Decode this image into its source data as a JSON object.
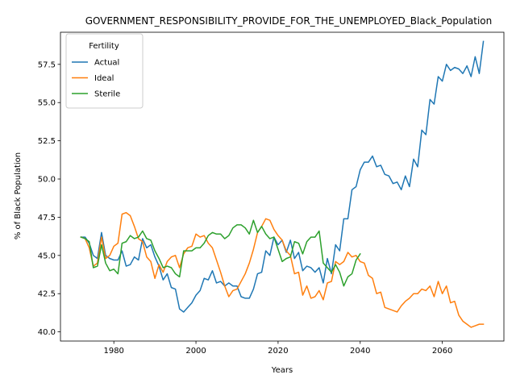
{
  "chart_data": {
    "type": "line",
    "title": "GOVERNMENT_RESPONSIBILITY_PROVIDE_FOR_THE_UNEMPLOYED_Black_Population",
    "xlabel": "Years",
    "ylabel": "% of Black Population",
    "xlim": [
      1967,
      2075
    ],
    "ylim": [
      39.4,
      59.6
    ],
    "xticks": [
      1980,
      2000,
      2020,
      2040,
      2060
    ],
    "yticks": [
      40.0,
      42.5,
      45.0,
      47.5,
      50.0,
      52.5,
      55.0,
      57.5
    ],
    "legend": {
      "title": "Fertility",
      "placement": "top-left"
    },
    "series": [
      {
        "name": "Actual",
        "color": "#1f77b4",
        "points": [
          [
            1972,
            46.2
          ],
          [
            1973,
            46.2
          ],
          [
            1974,
            45.8
          ],
          [
            1975,
            45.0
          ],
          [
            1976,
            44.8
          ],
          [
            1977,
            46.5
          ],
          [
            1978,
            45.0
          ],
          [
            1979,
            44.8
          ],
          [
            1980,
            44.7
          ],
          [
            1981,
            44.7
          ],
          [
            1982,
            45.3
          ],
          [
            1983,
            44.3
          ],
          [
            1984,
            44.4
          ],
          [
            1985,
            44.9
          ],
          [
            1986,
            44.7
          ],
          [
            1987,
            46.1
          ],
          [
            1988,
            45.5
          ],
          [
            1989,
            45.7
          ],
          [
            1990,
            44.9
          ],
          [
            1991,
            44.3
          ],
          [
            1992,
            43.4
          ],
          [
            1993,
            43.8
          ],
          [
            1994,
            42.9
          ],
          [
            1995,
            42.8
          ],
          [
            1996,
            41.5
          ],
          [
            1997,
            41.3
          ],
          [
            1998,
            41.6
          ],
          [
            1999,
            41.9
          ],
          [
            2000,
            42.4
          ],
          [
            2001,
            42.7
          ],
          [
            2002,
            43.5
          ],
          [
            2003,
            43.4
          ],
          [
            2004,
            44.0
          ],
          [
            2005,
            43.2
          ],
          [
            2006,
            43.3
          ],
          [
            2007,
            43.0
          ],
          [
            2008,
            43.2
          ],
          [
            2009,
            43.0
          ],
          [
            2010,
            43.0
          ],
          [
            2011,
            42.3
          ],
          [
            2012,
            42.2
          ],
          [
            2013,
            42.2
          ],
          [
            2014,
            42.8
          ],
          [
            2015,
            43.8
          ],
          [
            2016,
            43.9
          ],
          [
            2017,
            45.3
          ],
          [
            2018,
            45.0
          ],
          [
            2019,
            46.2
          ],
          [
            2020,
            45.7
          ],
          [
            2021,
            46.0
          ],
          [
            2022,
            45.2
          ],
          [
            2023,
            46.0
          ],
          [
            2024,
            44.8
          ],
          [
            2025,
            45.2
          ],
          [
            2026,
            44.0
          ],
          [
            2027,
            44.3
          ],
          [
            2028,
            44.2
          ],
          [
            2029,
            43.9
          ],
          [
            2030,
            44.2
          ],
          [
            2031,
            43.2
          ],
          [
            2032,
            44.8
          ],
          [
            2033,
            43.8
          ],
          [
            2034,
            45.7
          ],
          [
            2035,
            45.3
          ],
          [
            2036,
            47.4
          ],
          [
            2037,
            47.4
          ],
          [
            2038,
            49.3
          ],
          [
            2039,
            49.5
          ],
          [
            2040,
            50.6
          ],
          [
            2041,
            51.1
          ],
          [
            2042,
            51.1
          ],
          [
            2043,
            51.5
          ],
          [
            2044,
            50.8
          ],
          [
            2045,
            50.9
          ],
          [
            2046,
            50.3
          ],
          [
            2047,
            50.2
          ],
          [
            2048,
            49.7
          ],
          [
            2049,
            49.8
          ],
          [
            2050,
            49.3
          ],
          [
            2051,
            50.2
          ],
          [
            2052,
            49.5
          ],
          [
            2053,
            51.3
          ],
          [
            2054,
            50.8
          ],
          [
            2055,
            53.2
          ],
          [
            2056,
            52.9
          ],
          [
            2057,
            55.2
          ],
          [
            2058,
            54.9
          ],
          [
            2059,
            56.7
          ],
          [
            2060,
            56.4
          ],
          [
            2061,
            57.5
          ],
          [
            2062,
            57.1
          ],
          [
            2063,
            57.3
          ],
          [
            2064,
            57.2
          ],
          [
            2065,
            56.9
          ],
          [
            2066,
            57.4
          ],
          [
            2067,
            56.7
          ],
          [
            2068,
            58.0
          ],
          [
            2069,
            56.9
          ],
          [
            2070,
            59.0
          ]
        ]
      },
      {
        "name": "Ideal",
        "color": "#ff7f0e",
        "points": [
          [
            1972,
            46.2
          ],
          [
            1973,
            46.1
          ],
          [
            1974,
            45.5
          ],
          [
            1975,
            44.3
          ],
          [
            1976,
            44.5
          ],
          [
            1977,
            46.2
          ],
          [
            1978,
            44.8
          ],
          [
            1979,
            45.0
          ],
          [
            1980,
            45.6
          ],
          [
            1981,
            45.8
          ],
          [
            1982,
            47.7
          ],
          [
            1983,
            47.8
          ],
          [
            1984,
            47.6
          ],
          [
            1985,
            46.9
          ],
          [
            1986,
            46.1
          ],
          [
            1987,
            45.9
          ],
          [
            1988,
            44.9
          ],
          [
            1989,
            44.6
          ],
          [
            1990,
            43.5
          ],
          [
            1991,
            44.4
          ],
          [
            1992,
            43.9
          ],
          [
            1993,
            44.6
          ],
          [
            1994,
            44.9
          ],
          [
            1995,
            45.0
          ],
          [
            1996,
            44.2
          ],
          [
            1997,
            45.1
          ],
          [
            1998,
            45.5
          ],
          [
            1999,
            45.6
          ],
          [
            2000,
            46.4
          ],
          [
            2001,
            46.2
          ],
          [
            2002,
            46.3
          ],
          [
            2003,
            45.8
          ],
          [
            2004,
            45.5
          ],
          [
            2005,
            44.7
          ],
          [
            2006,
            43.9
          ],
          [
            2007,
            43.0
          ],
          [
            2008,
            42.3
          ],
          [
            2009,
            42.7
          ],
          [
            2010,
            42.8
          ],
          [
            2011,
            43.3
          ],
          [
            2012,
            43.8
          ],
          [
            2013,
            44.5
          ],
          [
            2014,
            45.4
          ],
          [
            2015,
            46.5
          ],
          [
            2016,
            46.9
          ],
          [
            2017,
            47.4
          ],
          [
            2018,
            47.3
          ],
          [
            2019,
            46.7
          ],
          [
            2020,
            46.3
          ],
          [
            2021,
            46.0
          ],
          [
            2022,
            45.3
          ],
          [
            2023,
            45.0
          ],
          [
            2024,
            43.8
          ],
          [
            2025,
            43.9
          ],
          [
            2026,
            42.4
          ],
          [
            2027,
            43.0
          ],
          [
            2028,
            42.2
          ],
          [
            2029,
            42.3
          ],
          [
            2030,
            42.7
          ],
          [
            2031,
            42.1
          ],
          [
            2032,
            43.2
          ],
          [
            2033,
            43.3
          ],
          [
            2034,
            44.6
          ],
          [
            2035,
            44.4
          ],
          [
            2036,
            44.6
          ],
          [
            2037,
            45.2
          ],
          [
            2038,
            44.9
          ],
          [
            2039,
            45.0
          ],
          [
            2040,
            44.6
          ],
          [
            2041,
            44.5
          ],
          [
            2042,
            43.7
          ],
          [
            2043,
            43.5
          ],
          [
            2044,
            42.5
          ],
          [
            2045,
            42.6
          ],
          [
            2046,
            41.6
          ],
          [
            2047,
            41.5
          ],
          [
            2048,
            41.4
          ],
          [
            2049,
            41.3
          ],
          [
            2050,
            41.7
          ],
          [
            2051,
            42.0
          ],
          [
            2052,
            42.2
          ],
          [
            2053,
            42.5
          ],
          [
            2054,
            42.5
          ],
          [
            2055,
            42.8
          ],
          [
            2056,
            42.7
          ],
          [
            2057,
            43.0
          ],
          [
            2058,
            42.3
          ],
          [
            2059,
            43.3
          ],
          [
            2060,
            42.5
          ],
          [
            2061,
            43.0
          ],
          [
            2062,
            41.9
          ],
          [
            2063,
            42.0
          ],
          [
            2064,
            41.1
          ],
          [
            2065,
            40.7
          ],
          [
            2066,
            40.5
          ],
          [
            2067,
            40.3
          ],
          [
            2068,
            40.4
          ],
          [
            2069,
            40.5
          ],
          [
            2070,
            40.5
          ]
        ]
      },
      {
        "name": "Sterile",
        "color": "#2ca02c",
        "points": [
          [
            1972,
            46.2
          ],
          [
            1973,
            46.1
          ],
          [
            1974,
            45.9
          ],
          [
            1975,
            44.2
          ],
          [
            1976,
            44.3
          ],
          [
            1977,
            45.7
          ],
          [
            1978,
            44.5
          ],
          [
            1979,
            44.0
          ],
          [
            1980,
            44.1
          ],
          [
            1981,
            43.8
          ],
          [
            1982,
            45.8
          ],
          [
            1983,
            45.9
          ],
          [
            1984,
            46.3
          ],
          [
            1985,
            46.1
          ],
          [
            1986,
            46.2
          ],
          [
            1987,
            46.6
          ],
          [
            1988,
            46.1
          ],
          [
            1989,
            46.0
          ],
          [
            1990,
            45.3
          ],
          [
            1991,
            44.8
          ],
          [
            1992,
            44.2
          ],
          [
            1993,
            44.3
          ],
          [
            1994,
            44.2
          ],
          [
            1995,
            43.8
          ],
          [
            1996,
            43.6
          ],
          [
            1997,
            45.3
          ],
          [
            1998,
            45.3
          ],
          [
            1999,
            45.3
          ],
          [
            2000,
            45.5
          ],
          [
            2001,
            45.5
          ],
          [
            2002,
            45.8
          ],
          [
            2003,
            46.3
          ],
          [
            2004,
            46.5
          ],
          [
            2005,
            46.4
          ],
          [
            2006,
            46.4
          ],
          [
            2007,
            46.1
          ],
          [
            2008,
            46.3
          ],
          [
            2009,
            46.8
          ],
          [
            2010,
            47.0
          ],
          [
            2011,
            47.0
          ],
          [
            2012,
            46.8
          ],
          [
            2013,
            46.4
          ],
          [
            2014,
            47.3
          ],
          [
            2015,
            46.5
          ],
          [
            2016,
            46.9
          ],
          [
            2017,
            46.4
          ],
          [
            2018,
            46.1
          ],
          [
            2019,
            46.2
          ],
          [
            2020,
            45.4
          ],
          [
            2021,
            44.6
          ],
          [
            2022,
            44.8
          ],
          [
            2023,
            44.9
          ],
          [
            2024,
            45.9
          ],
          [
            2025,
            45.8
          ],
          [
            2026,
            45.1
          ],
          [
            2027,
            45.9
          ],
          [
            2028,
            46.2
          ],
          [
            2029,
            46.2
          ],
          [
            2030,
            46.6
          ],
          [
            2031,
            44.5
          ],
          [
            2032,
            44.2
          ],
          [
            2033,
            43.9
          ],
          [
            2034,
            44.4
          ],
          [
            2035,
            43.9
          ],
          [
            2036,
            43.0
          ],
          [
            2037,
            43.6
          ],
          [
            2038,
            43.8
          ],
          [
            2039,
            44.7
          ],
          [
            2040,
            45.1
          ]
        ]
      }
    ]
  }
}
